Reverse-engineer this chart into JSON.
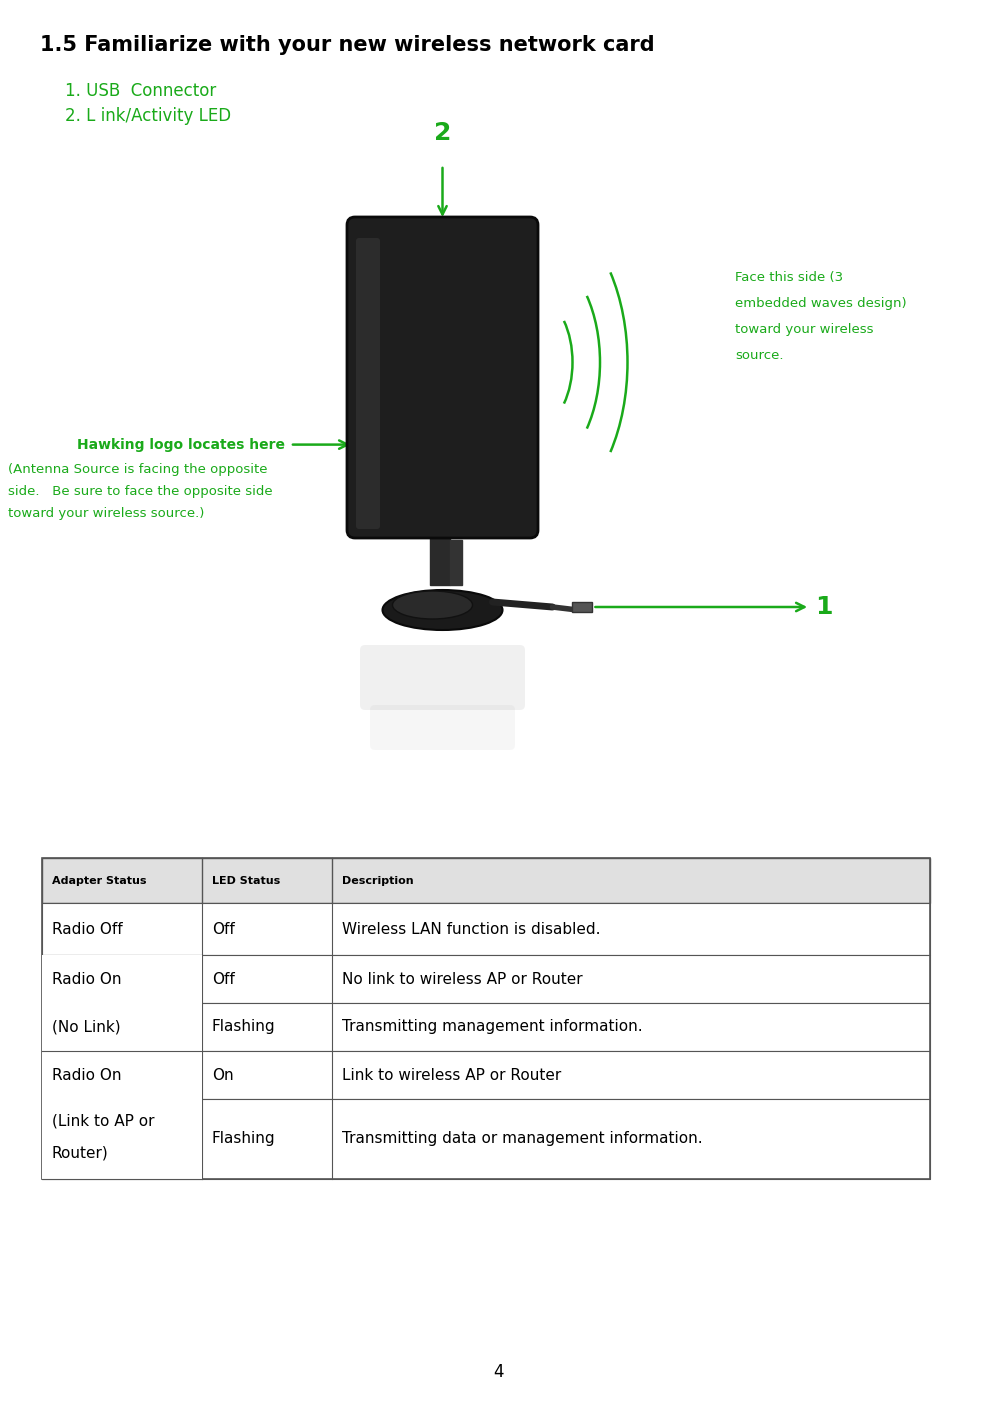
{
  "title": "1.5 Familiarize with your new wireless network card",
  "title_color": "#000000",
  "title_fontsize": 15,
  "bullet1": "1. USB  Connector",
  "bullet2": "2. L ink/Activity LED",
  "bullet_color": "#1aaa1a",
  "bullet_fontsize": 12,
  "label1": "1",
  "label2": "2",
  "label_color": "#1aaa1a",
  "hawking_label": "Hawking logo locates here",
  "hawking_color": "#1aaa1a",
  "antenna_line1": "(Antenna Source is facing the opposite",
  "antenna_line2": "side.   Be sure to face the opposite side",
  "antenna_line3": "toward your wireless source.)",
  "antenna_color": "#1aaa1a",
  "face_line1": "Face this side (3",
  "face_line2": "embedded waves design)",
  "face_line3": "toward your wireless",
  "face_line4": "source.",
  "face_color": "#1aaa1a",
  "wave_color": "#1aaa1a",
  "device_color": "#1e1e1e",
  "table_header": [
    "Adapter Status",
    "LED Status",
    "Description"
  ],
  "page_number": "4",
  "bg_color": "#ffffff"
}
